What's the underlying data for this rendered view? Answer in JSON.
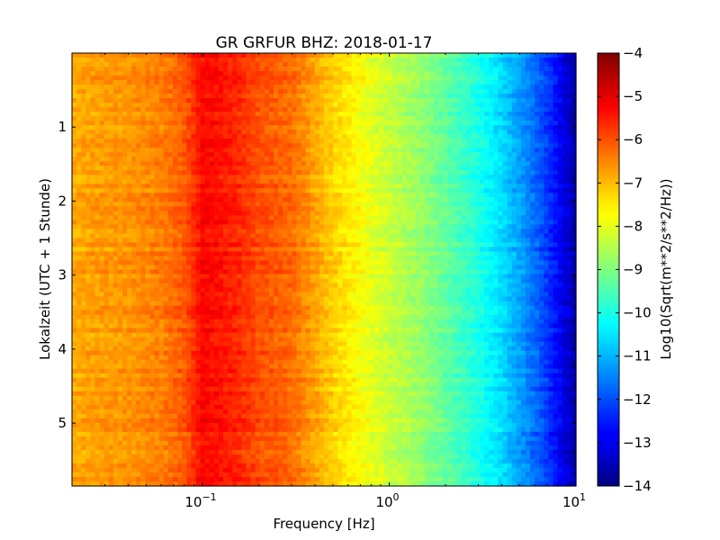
{
  "chart_data": {
    "type": "heatmap",
    "title": "GR GRFUR BHZ: 2018-01-17",
    "xlabel": "Frequency [Hz]",
    "ylabel": "Lokalzeit (UTC + 1 Stunde)",
    "colorbar_label": "Log10(Sqrt(m**2/s**2/Hz))",
    "x_scale": "log",
    "xlim": [
      0.02,
      10
    ],
    "ylim": [
      5.85,
      0
    ],
    "x_ticks": [
      {
        "value": 0.1,
        "base": "10",
        "exp": "−1"
      },
      {
        "value": 1,
        "base": "10",
        "exp": "0"
      },
      {
        "value": 10,
        "base": "10",
        "exp": "1"
      }
    ],
    "y_ticks": [
      "1",
      "2",
      "3",
      "4",
      "5"
    ],
    "colorbar_ticks": [
      "−4",
      "−5",
      "−6",
      "−7",
      "−8",
      "−9",
      "−10",
      "−11",
      "−12",
      "−13",
      "−14"
    ],
    "clim": [
      -14,
      -4
    ],
    "colormap": "jet",
    "grid": false,
    "spectrum_profile": {
      "frequency_hz": [
        0.02,
        0.04,
        0.06,
        0.08,
        0.1,
        0.12,
        0.15,
        0.2,
        0.3,
        0.5,
        0.7,
        1.0,
        1.5,
        2.0,
        3.0,
        4.0,
        5.0,
        6.0,
        7.0,
        8.0,
        9.0,
        10.0
      ],
      "value": [
        -6.9,
        -6.7,
        -6.5,
        -6.1,
        -5.3,
        -5.4,
        -5.6,
        -6.0,
        -6.3,
        -7.3,
        -7.8,
        -8.3,
        -8.8,
        -9.3,
        -10.0,
        -10.6,
        -11.2,
        -11.7,
        -12.2,
        -12.7,
        -13.2,
        -13.6
      ]
    }
  }
}
